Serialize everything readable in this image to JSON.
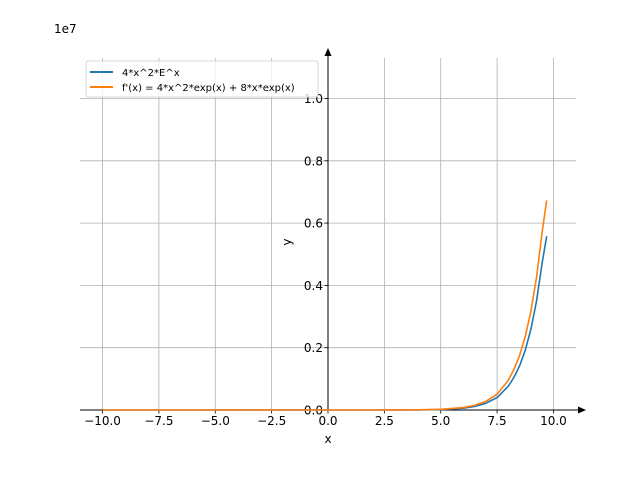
{
  "chart_data": {
    "type": "line",
    "title": "",
    "xlabel": "x",
    "ylabel": "y",
    "offset_text": "1e7",
    "xlim": [
      -11,
      11
    ],
    "ylim": [
      0,
      11300000
    ],
    "xticks": [
      -10,
      -7.5,
      -5,
      -2.5,
      0,
      2.5,
      5,
      7.5,
      10
    ],
    "xtick_labels": [
      "−10.0",
      "−7.5",
      "−5.0",
      "−2.5",
      "0.0",
      "2.5",
      "5.0",
      "7.5",
      "10.0"
    ],
    "yticks": [
      0,
      2000000,
      4000000,
      6000000,
      8000000,
      10000000
    ],
    "ytick_labels": [
      "0.0",
      "0.2",
      "0.4",
      "0.6",
      "0.8",
      "1.0"
    ],
    "grid": true,
    "legend_position": "top-left",
    "series": [
      {
        "name": "4*x^2*E^x",
        "color": "#1f77b4",
        "x": [
          -10,
          -8,
          -6,
          -4,
          -2,
          0,
          2,
          4,
          5,
          6,
          6.5,
          7,
          7.5,
          8,
          8.25,
          8.5,
          8.75,
          9,
          9.25,
          9.5,
          9.7
        ],
        "y": [
          18,
          86,
          357,
          1172,
          2165,
          0,
          118,
          3494,
          14841,
          58089,
          112994,
          214921,
          400972,
          762973,
          1051600,
          1419900,
          1920800,
          2592600,
          3501600,
          4725700,
          5580000
        ]
      },
      {
        "name": "f'(x) = 4*x^2*exp(x) + 8*x*exp(x)",
        "color": "#ff7f0e",
        "x": [
          -10,
          -8,
          -6,
          -4,
          -2,
          0,
          2,
          4,
          5,
          6,
          6.5,
          7,
          7.5,
          8,
          8.25,
          8.5,
          8.75,
          9,
          9.25,
          9.5,
          9.7
        ],
        "y": [
          15,
          64,
          238,
          586,
          0,
          0,
          236,
          5241,
          20778,
          77452,
          147762,
          276327,
          507898,
          953716,
          1306700,
          1753900,
          2360000,
          3168700,
          4259000,
          5720500,
          6730000
        ]
      }
    ]
  }
}
